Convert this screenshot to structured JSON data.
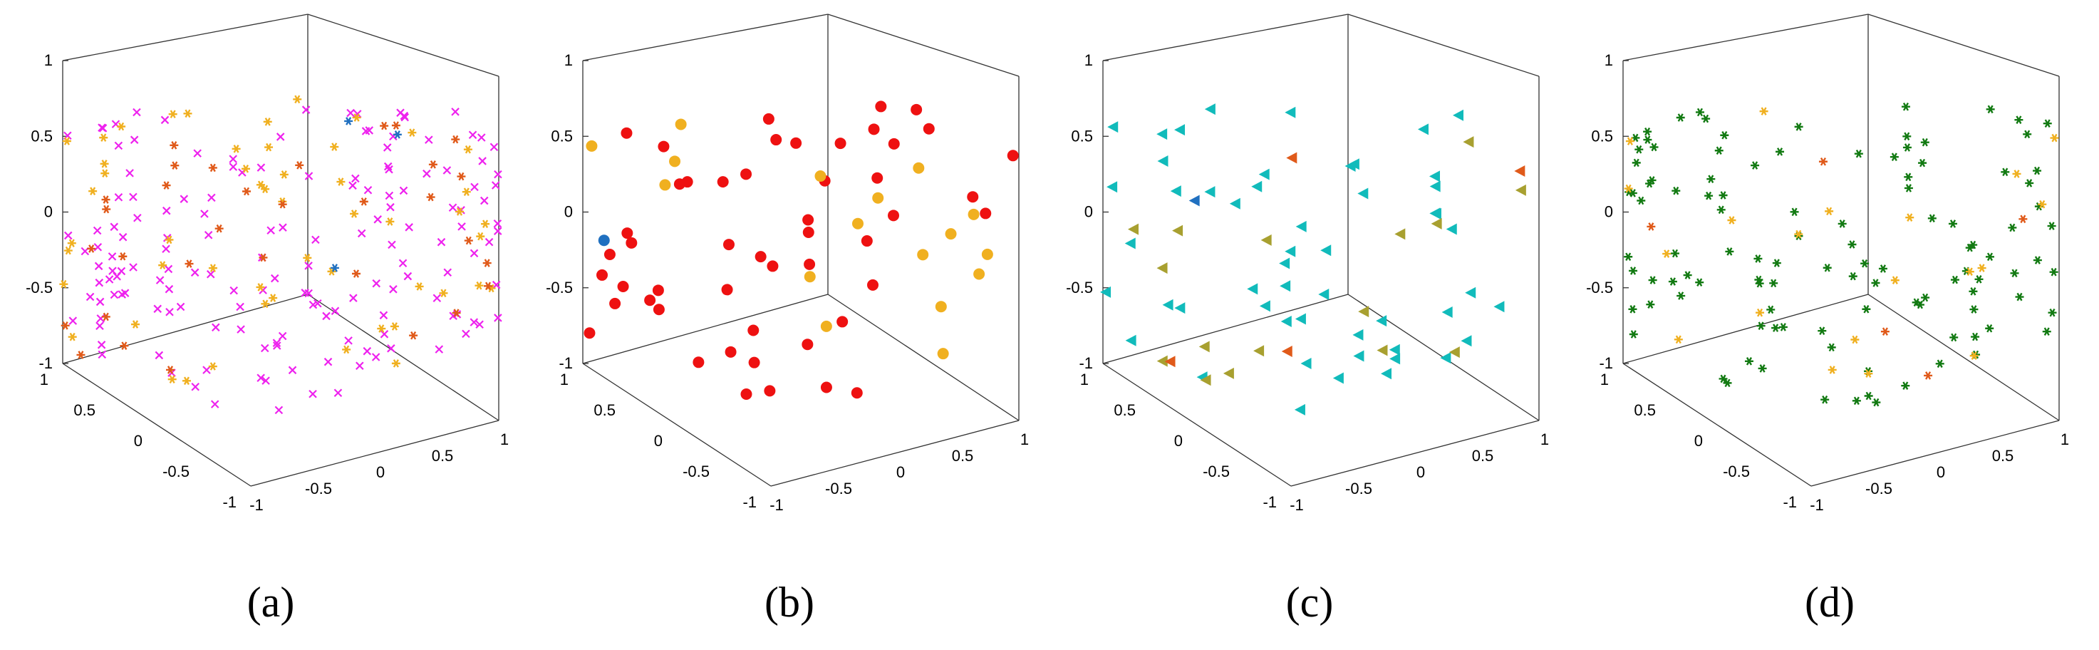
{
  "figure": {
    "panels": [
      {
        "caption": "(a)",
        "marker": "x",
        "ticks": [
          "1",
          "0.5",
          "0",
          "-0.5",
          "-1"
        ]
      },
      {
        "caption": "(b)",
        "marker": "circle",
        "ticks": [
          "1",
          "0.5",
          "0",
          "-0.5",
          "-1"
        ]
      },
      {
        "caption": "(c)",
        "marker": "triangle",
        "ticks": [
          "1",
          "0.5",
          "0",
          "-0.5",
          "-1"
        ]
      },
      {
        "caption": "(d)",
        "marker": "star",
        "ticks": [
          "1",
          "0.5",
          "0",
          "-0.5",
          "-1"
        ]
      }
    ],
    "colors": {
      "magenta": "#ee22ee",
      "gold": "#f0b020",
      "orange_red": "#e05a1a",
      "blue": "#2070c0",
      "red": "#ee1111",
      "cyan": "#11bbbb",
      "olive": "#a8a030",
      "green": "#127a12",
      "axis": "#333333"
    }
  },
  "chart_data": [
    {
      "type": "scatter",
      "title": "",
      "projection": "3d",
      "xlim": [
        -1,
        1
      ],
      "ylim": [
        -1,
        1
      ],
      "zlim": [
        -1,
        1
      ],
      "tick_labels": [
        "-1",
        "-0.5",
        "0",
        "0.5",
        "1"
      ],
      "series": [
        {
          "marker": "x",
          "color": "magenta",
          "count": 155
        },
        {
          "marker": "asterisk",
          "color": "gold",
          "count": 52
        },
        {
          "marker": "asterisk",
          "color": "orange_red",
          "count": 32
        },
        {
          "marker": "asterisk",
          "color": "blue",
          "count": 3
        }
      ]
    },
    {
      "type": "scatter",
      "title": "",
      "projection": "3d",
      "xlim": [
        -1,
        1
      ],
      "ylim": [
        -1,
        1
      ],
      "zlim": [
        -1,
        1
      ],
      "tick_labels": [
        "-1",
        "-0.5",
        "0",
        "0.5",
        "1"
      ],
      "series": [
        {
          "marker": "circle",
          "color": "red",
          "count": 50
        },
        {
          "marker": "circle",
          "color": "gold",
          "count": 17
        },
        {
          "marker": "circle",
          "color": "blue",
          "count": 1
        }
      ]
    },
    {
      "type": "scatter",
      "title": "",
      "projection": "3d",
      "xlim": [
        -1,
        1
      ],
      "ylim": [
        -1,
        1
      ],
      "zlim": [
        -1,
        1
      ],
      "tick_labels": [
        "-1",
        "-0.5",
        "0",
        "0.5",
        "1"
      ],
      "series": [
        {
          "marker": "triangle-left",
          "color": "cyan",
          "count": 52
        },
        {
          "marker": "triangle-left",
          "color": "olive",
          "count": 16
        },
        {
          "marker": "triangle-left",
          "color": "orange_red",
          "count": 4
        },
        {
          "marker": "triangle-left",
          "color": "blue",
          "count": 1
        }
      ]
    },
    {
      "type": "scatter",
      "title": "",
      "projection": "3d",
      "xlim": [
        -1,
        1
      ],
      "ylim": [
        -1,
        1
      ],
      "zlim": [
        -1,
        1
      ],
      "tick_labels": [
        "-1",
        "-0.5",
        "0",
        "0.5",
        "1"
      ],
      "series": [
        {
          "marker": "asterisk",
          "color": "green",
          "count": 110
        },
        {
          "marker": "asterisk",
          "color": "gold",
          "count": 20
        },
        {
          "marker": "asterisk",
          "color": "orange_red",
          "count": 5
        }
      ]
    }
  ]
}
